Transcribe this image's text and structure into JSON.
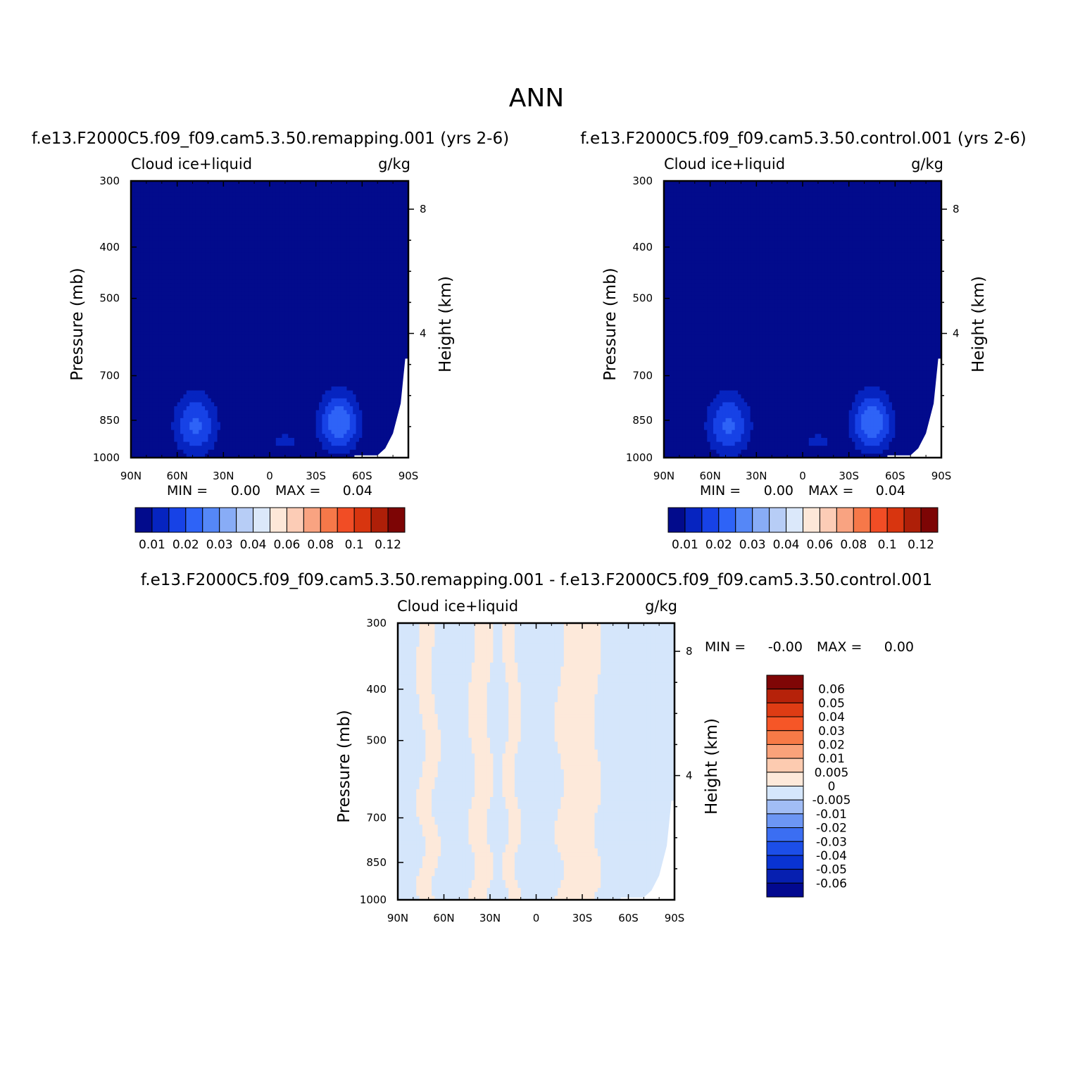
{
  "title": "ANN",
  "colors": {
    "seq": [
      "#020b8c",
      "#0624c0",
      "#1742e6",
      "#2e63f7",
      "#5587f7",
      "#88acf6",
      "#b7cdf6",
      "#dbe8fa",
      "#fde7d8",
      "#fcccb6",
      "#f9a381",
      "#f67849",
      "#f14d25",
      "#d8350f",
      "#ae1f08",
      "#7d0505"
    ],
    "diff": [
      "#02098f",
      "#061fb0",
      "#0933d2",
      "#1c4ee8",
      "#3b6ef2",
      "#6c96f4",
      "#a1bdf5",
      "#d5e6fb",
      "#fde9da",
      "#fdcbb0",
      "#f9a27a",
      "#f77a47",
      "#f65627",
      "#de3c14",
      "#b6220a",
      "#7f0606"
    ]
  },
  "panels": [
    {
      "case_title": "f.e13.F2000C5.f09_f09.cam5.3.50.remapping.001  (yrs 2-6)",
      "variable": "Cloud ice+liquid",
      "units": "g/kg",
      "min_label": "MIN =",
      "min_value": "0.00",
      "max_label": "MAX =",
      "max_value": "0.04",
      "colorbar_labels": [
        "0.01",
        "0.02",
        "0.03",
        "0.04",
        "0.06",
        "0.08",
        "0.1",
        "0.12"
      ]
    },
    {
      "case_title": "f.e13.F2000C5.f09_f09.cam5.3.50.control.001  (yrs 2-6)",
      "variable": "Cloud ice+liquid",
      "units": "g/kg",
      "min_label": "MIN =",
      "min_value": "0.00",
      "max_label": "MAX =",
      "max_value": "0.04",
      "colorbar_labels": [
        "0.01",
        "0.02",
        "0.03",
        "0.04",
        "0.06",
        "0.08",
        "0.1",
        "0.12"
      ]
    },
    {
      "case_title": "f.e13.F2000C5.f09_f09.cam5.3.50.remapping.001 - f.e13.F2000C5.f09_f09.cam5.3.50.control.001",
      "variable": "Cloud ice+liquid",
      "units": "g/kg",
      "min_label": "MIN =",
      "min_value": "-0.00",
      "max_label": "MAX =",
      "max_value": "0.00",
      "colorbar_labels": [
        "0.06",
        "0.05",
        "0.04",
        "0.03",
        "0.02",
        "0.01",
        "0.005",
        "0",
        "-0.005",
        "-0.01",
        "-0.02",
        "-0.03",
        "-0.04",
        "-0.05",
        "-0.06"
      ]
    }
  ],
  "chart_data": [
    {
      "type": "heatmap",
      "title": "f.e13.F2000C5.f09_f09.cam5.3.50.remapping.001  (yrs 2-6)",
      "variable": "Cloud ice+liquid",
      "units": "g/kg",
      "xlabel": "",
      "ylabel": "Pressure (mb)",
      "y2label": "Height (km)",
      "xlim": [
        90,
        -90
      ],
      "ylim": [
        1000,
        300
      ],
      "x_ticks": [
        {
          "v": 90,
          "l": "90N"
        },
        {
          "v": 60,
          "l": "60N"
        },
        {
          "v": 30,
          "l": "30N"
        },
        {
          "v": 0,
          "l": "0"
        },
        {
          "v": -30,
          "l": "30S"
        },
        {
          "v": -60,
          "l": "60S"
        },
        {
          "v": -90,
          "l": "90S"
        }
      ],
      "y_ticks": [
        {
          "v": 300,
          "l": "300"
        },
        {
          "v": 400,
          "l": "400"
        },
        {
          "v": 500,
          "l": "500"
        },
        {
          "v": 700,
          "l": "700"
        },
        {
          "v": 850,
          "l": "850"
        },
        {
          "v": 1000,
          "l": "1000"
        }
      ],
      "y2_ticks": [
        {
          "v": 8,
          "l": "8"
        },
        {
          "v": 4,
          "l": "4"
        }
      ],
      "contour_levels": [
        0.01,
        0.02,
        0.03,
        0.04,
        0.06,
        0.08,
        0.1,
        0.12
      ],
      "min": 0.0,
      "max": 0.04,
      "background_value": 0.0,
      "features": [
        {
          "lat": 48,
          "p": 870,
          "peak": 0.032,
          "lat_width": 14,
          "p_width": 120
        },
        {
          "lat": -45,
          "p": 860,
          "peak": 0.04,
          "lat_width": 13,
          "p_width": 110
        },
        {
          "lat": -10,
          "p": 930,
          "peak": 0.014,
          "lat_width": 10,
          "p_width": 40
        }
      ]
    },
    {
      "type": "heatmap",
      "title": "f.e13.F2000C5.f09_f09.cam5.3.50.control.001  (yrs 2-6)",
      "variable": "Cloud ice+liquid",
      "units": "g/kg",
      "xlabel": "",
      "ylabel": "Pressure (mb)",
      "y2label": "Height (km)",
      "xlim": [
        90,
        -90
      ],
      "ylim": [
        1000,
        300
      ],
      "x_ticks": [
        {
          "v": 90,
          "l": "90N"
        },
        {
          "v": 60,
          "l": "60N"
        },
        {
          "v": 30,
          "l": "30N"
        },
        {
          "v": 0,
          "l": "0"
        },
        {
          "v": -30,
          "l": "30S"
        },
        {
          "v": -60,
          "l": "60S"
        },
        {
          "v": -90,
          "l": "90S"
        }
      ],
      "y_ticks": [
        {
          "v": 300,
          "l": "300"
        },
        {
          "v": 400,
          "l": "400"
        },
        {
          "v": 500,
          "l": "500"
        },
        {
          "v": 700,
          "l": "700"
        },
        {
          "v": 850,
          "l": "850"
        },
        {
          "v": 1000,
          "l": "1000"
        }
      ],
      "y2_ticks": [
        {
          "v": 8,
          "l": "8"
        },
        {
          "v": 4,
          "l": "4"
        }
      ],
      "contour_levels": [
        0.01,
        0.02,
        0.03,
        0.04,
        0.06,
        0.08,
        0.1,
        0.12
      ],
      "min": 0.0,
      "max": 0.04,
      "background_value": 0.0,
      "features": [
        {
          "lat": 48,
          "p": 870,
          "peak": 0.032,
          "lat_width": 14,
          "p_width": 120
        },
        {
          "lat": -45,
          "p": 860,
          "peak": 0.04,
          "lat_width": 13,
          "p_width": 110
        },
        {
          "lat": -10,
          "p": 930,
          "peak": 0.014,
          "lat_width": 10,
          "p_width": 40
        }
      ]
    },
    {
      "type": "heatmap",
      "title": "f.e13.F2000C5.f09_f09.cam5.3.50.remapping.001 - f.e13.F2000C5.f09_f09.cam5.3.50.control.001",
      "variable": "Cloud ice+liquid",
      "units": "g/kg",
      "xlabel": "",
      "ylabel": "Pressure (mb)",
      "y2label": "Height (km)",
      "xlim": [
        90,
        -90
      ],
      "ylim": [
        1000,
        300
      ],
      "x_ticks": [
        {
          "v": 90,
          "l": "90N"
        },
        {
          "v": 60,
          "l": "60N"
        },
        {
          "v": 30,
          "l": "30N"
        },
        {
          "v": 0,
          "l": "0"
        },
        {
          "v": -30,
          "l": "30S"
        },
        {
          "v": -60,
          "l": "60S"
        },
        {
          "v": -90,
          "l": "90S"
        }
      ],
      "y_ticks": [
        {
          "v": 300,
          "l": "300"
        },
        {
          "v": 400,
          "l": "400"
        },
        {
          "v": 500,
          "l": "500"
        },
        {
          "v": 700,
          "l": "700"
        },
        {
          "v": 850,
          "l": "850"
        },
        {
          "v": 1000,
          "l": "1000"
        }
      ],
      "y2_ticks": [
        {
          "v": 8,
          "l": "8"
        },
        {
          "v": 4,
          "l": "4"
        }
      ],
      "contour_levels": [
        -0.06,
        -0.05,
        -0.04,
        -0.03,
        -0.02,
        -0.01,
        -0.005,
        0,
        0.005,
        0.01,
        0.02,
        0.03,
        0.04,
        0.05,
        0.06
      ],
      "min": -0.0,
      "max": 0.0,
      "note": "field alternates between the -0.005..0 and 0..0.005 intervals",
      "positive_bands_lat": [
        [
          75,
          65
        ],
        [
          42,
          30
        ],
        [
          20,
          12
        ],
        [
          -15,
          -40
        ]
      ]
    }
  ]
}
